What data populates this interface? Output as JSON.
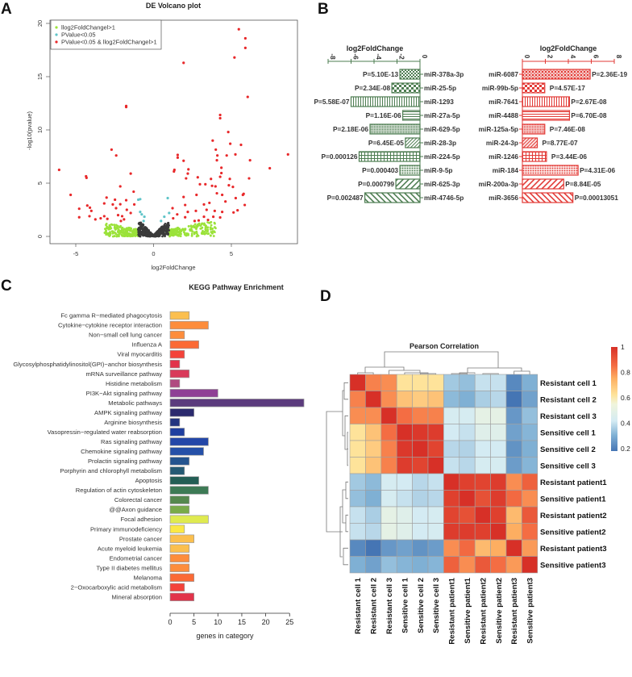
{
  "panels": {
    "a": "A",
    "b": "B",
    "c": "C",
    "d": "D"
  },
  "chart_data": [
    {
      "type": "scatter",
      "title": "DE Volcano plot",
      "xlabel": "log2FoldChange",
      "ylabel": "-log10(pvalue)",
      "xlim": [
        -6.66,
        9.25
      ],
      "ylim": [
        -0.76,
        20.2
      ],
      "xticks": [
        "-5",
        "0",
        "5"
      ],
      "xtick_values": [
        -5,
        0,
        5
      ],
      "yticks": [
        "0",
        "5",
        "10",
        "15",
        "20"
      ],
      "ytick_values": [
        0,
        5,
        10,
        15,
        20
      ],
      "legend_position": "top-left",
      "legend": [
        {
          "label": "llog2FoldChangel>1",
          "color": "#9be23a"
        },
        {
          "label": "PValue<0.05",
          "color": "#5fc4c8"
        },
        {
          "label": "PValue<0.05 & llog2FoldChangel>1",
          "color": "#e8282a"
        }
      ],
      "colors": {
        "fc_only": "#9be23a",
        "p_only": "#5fc4c8",
        "both": "#e8282a",
        "none": "#3a3a3a"
      },
      "background_counts": {
        "fc_only": 420,
        "none": 380
      },
      "p_only_points": [
        [
          -0.98,
          3.45
        ],
        [
          -0.86,
          3.5
        ],
        [
          0.91,
          3.6
        ],
        [
          -0.86,
          2.3
        ],
        [
          -0.76,
          2.07
        ],
        [
          -0.59,
          1.85
        ],
        [
          1.0,
          2.2
        ],
        [
          0.69,
          1.85
        ],
        [
          -0.64,
          1.45
        ],
        [
          0.48,
          1.45
        ]
      ],
      "both_points": [
        [
          5.48,
          19.45
        ],
        [
          5.9,
          18.6
        ],
        [
          5.9,
          17.7
        ],
        [
          5.2,
          16.8
        ],
        [
          1.93,
          16.3
        ],
        [
          6.05,
          13.1
        ],
        [
          -1.76,
          12.25
        ],
        [
          -1.76,
          12.15
        ],
        [
          4.28,
          11.4
        ],
        [
          4.28,
          11.1
        ],
        [
          4.8,
          9.8
        ],
        [
          3.8,
          9
        ],
        [
          4.93,
          8.7
        ],
        [
          5.62,
          8.6
        ],
        [
          -2.7,
          8.15
        ],
        [
          -2.4,
          7.6
        ],
        [
          1.55,
          7.65
        ],
        [
          1.55,
          7.4
        ],
        [
          4,
          8.15
        ],
        [
          4.1,
          7.6
        ],
        [
          4.7,
          7.6
        ],
        [
          5.26,
          7.7
        ],
        [
          8.64,
          7.7
        ],
        [
          6.2,
          7.15
        ],
        [
          4.07,
          7.15
        ],
        [
          1.93,
          7.1
        ],
        [
          -6.07,
          6.25
        ],
        [
          1.34,
          6.25
        ],
        [
          1.31,
          6.1
        ],
        [
          2.24,
          6.3
        ],
        [
          7.47,
          6.4
        ],
        [
          4.36,
          6.45
        ],
        [
          4.36,
          5.95
        ],
        [
          -1.47,
          5.9
        ],
        [
          2.2,
          5.9
        ],
        [
          -4.34,
          5.65
        ],
        [
          -4.31,
          5.5
        ],
        [
          2.09,
          5.45
        ],
        [
          2.84,
          5.55
        ],
        [
          4.28,
          5.6
        ],
        [
          6.14,
          5.45
        ],
        [
          3.69,
          5.4
        ],
        [
          4.9,
          5.4
        ],
        [
          2.98,
          4.9
        ],
        [
          3.33,
          4.9
        ],
        [
          3.76,
          4.75
        ],
        [
          3.98,
          4.7
        ],
        [
          4.84,
          4.8
        ],
        [
          5.1,
          4.65
        ],
        [
          -2.14,
          4.7
        ],
        [
          -1.28,
          4.2
        ],
        [
          -5.33,
          3.9
        ],
        [
          -3.02,
          3.65
        ],
        [
          -2.48,
          3.45
        ],
        [
          -1.76,
          3.4
        ],
        [
          1.93,
          3.7
        ],
        [
          2.76,
          3.9
        ],
        [
          4.07,
          4.05
        ],
        [
          4.41,
          3.9
        ],
        [
          5.28,
          3.6
        ],
        [
          5.79,
          4
        ],
        [
          5.74,
          3.9
        ],
        [
          -3.17,
          3.1
        ],
        [
          -2.62,
          3
        ],
        [
          -2.14,
          3.02
        ],
        [
          -1.24,
          3
        ],
        [
          -4.26,
          2.9
        ],
        [
          2.03,
          2.95
        ],
        [
          3.24,
          3
        ],
        [
          3.59,
          3.15
        ],
        [
          4.62,
          3.28
        ],
        [
          5.86,
          2.95
        ],
        [
          -4.78,
          2.6
        ],
        [
          -4.09,
          2.7
        ],
        [
          -4.0,
          2.4
        ],
        [
          -2.41,
          2.65
        ],
        [
          -1.72,
          2.5
        ],
        [
          1.22,
          2.65
        ],
        [
          2.2,
          2.3
        ],
        [
          2.72,
          2.4
        ],
        [
          3.41,
          2.5
        ],
        [
          3.93,
          2.4
        ],
        [
          4.41,
          2.3
        ],
        [
          5.14,
          2.25
        ],
        [
          5.4,
          2.45
        ],
        [
          -4.78,
          1.8
        ],
        [
          -4.12,
          1.9
        ],
        [
          -3.74,
          1.6
        ],
        [
          -3.17,
          1.9
        ],
        [
          -2.97,
          1.65
        ],
        [
          -2.28,
          2
        ],
        [
          -2.02,
          1.9
        ],
        [
          -1.47,
          2.2
        ],
        [
          1.52,
          2.07
        ],
        [
          2.03,
          1.8
        ],
        [
          3.24,
          1.85
        ],
        [
          3.84,
          1.85
        ],
        [
          4.28,
          1.78
        ],
        [
          1.26,
          1.7
        ],
        [
          2.64,
          1.45
        ],
        [
          -2.1,
          1.45
        ],
        [
          -1.9,
          1.6
        ],
        [
          2.9,
          1.5
        ],
        [
          3.5,
          1.55
        ],
        [
          -3.4,
          1.7
        ]
      ]
    },
    {
      "type": "bar",
      "orientation": "horizontal",
      "title": "log2FoldChange",
      "xlim": [
        -8,
        0
      ],
      "xticks": [
        "-8",
        "-6",
        "-4",
        "-2",
        "0"
      ],
      "xtick_values": [
        -8,
        -6,
        -4,
        -2,
        0
      ],
      "color": "#4e7d52",
      "categories": [
        "miR-378a-3p",
        "miR-25-5p",
        "miR-1293",
        "miR-27a-5p",
        "miR-629-5p",
        "miR-28-3p",
        "miR-224-5p",
        "miR-9-5p",
        "miR-625-3p",
        "miR-4746-5p"
      ],
      "values": [
        -1.75,
        -2.45,
        -6.0,
        -1.5,
        -4.35,
        -1.27,
        -5.3,
        -1.75,
        -2.1,
        -4.8
      ],
      "labels": [
        "P=5.10E-13",
        "P=2.34E-08",
        "P=5.58E-07",
        "P=1.16E-06",
        "P=2.18E-06",
        "P=6.45E-05",
        "P=0.000126",
        "P=0.000403",
        "P=0.000799",
        "P=0.002487"
      ]
    },
    {
      "type": "bar",
      "orientation": "horizontal",
      "title": "log2FoldChange",
      "xlim": [
        0,
        8
      ],
      "xticks": [
        "0",
        "2",
        "4",
        "6",
        "8"
      ],
      "xtick_values": [
        0,
        2,
        4,
        6,
        8
      ],
      "color": "#e23a36",
      "categories": [
        "miR-6087",
        "miR-99b-5p",
        "miR-7641",
        "miR-4488",
        "miR-125a-5p",
        "miR-24-3p",
        "miR-1246",
        "miR-184",
        "miR-200a-3p",
        "miR-3656"
      ],
      "values": [
        5.9,
        1.95,
        4.1,
        4.1,
        1.95,
        1.3,
        2.1,
        4.85,
        3.6,
        4.4
      ],
      "labels": [
        "P=2.36E-19",
        "P=4.57E-17",
        "P=2.67E-08",
        "P=6.70E-08",
        "P=7.46E-08",
        "P=8.77E-07",
        "P=3.44E-06",
        "P=4.31E-06",
        "P=8.84E-05",
        "P=0.00013051"
      ]
    },
    {
      "type": "bar",
      "orientation": "horizontal",
      "title": "KEGG Pathway Enrichment",
      "xlabel": "genes in category",
      "xlim": [
        0,
        28
      ],
      "xticks": [
        "0",
        "5",
        "10",
        "15",
        "20",
        "25"
      ],
      "xtick_values": [
        0,
        5,
        10,
        15,
        20,
        25
      ],
      "categories": [
        "Fc gamma R−mediated phagocytosis",
        "Cytokine−cytokine receptor interaction",
        "Non−small cell lung cancer",
        "Influenza A",
        "Viral myocarditis",
        "Glycosylphosphatidylinositol(GPI)−anchor biosynthesis",
        "mRNA surveillance pathway",
        "Histidine metabolism",
        "PI3K−Akt signaling pathway",
        "Metabolic pathways",
        "AMPK signaling pathway",
        "Arginine biosynthesis",
        "Vasopressin−regulated water reabsorption",
        "Ras signaling pathway",
        "Chemokine signaling pathway",
        "Prolactin signaling pathway",
        "Porphyrin and chlorophyll metabolism",
        "Apoptosis",
        "Regulation of actin cytoskeleton",
        "Colorectal cancer",
        "@@Axon guidance",
        "Focal adhesion",
        "Primary immunodeficiency",
        "Prostate cancer",
        "Acute myeloid leukemia",
        "Endometrial cancer",
        "Type II diabetes mellitus",
        "Melanoma",
        "2−Oxocarboxylic acid metabolism",
        "Mineral absorption"
      ],
      "values": [
        4,
        8,
        3,
        6,
        3,
        2,
        4,
        2,
        10,
        28,
        5,
        2,
        3,
        8,
        7,
        4,
        3,
        6,
        8,
        4,
        4,
        8,
        3,
        5,
        4,
        4,
        4,
        5,
        3,
        5
      ],
      "colors": [
        "#fbbf4e",
        "#fd8d3c",
        "#fd8d3c",
        "#fb6a35",
        "#f4433a",
        "#e2334a",
        "#d93a5a",
        "#b04a80",
        "#8f3f95",
        "#5b3b7d",
        "#2b2a6e",
        "#223480",
        "#1f3fa0",
        "#2447a8",
        "#2550a8",
        "#24548f",
        "#255a74",
        "#235e55",
        "#3d7a55",
        "#55884e",
        "#79aa4a",
        "#dfea50",
        "#fbe845",
        "#fbbf4e",
        "#fbbf4e",
        "#fd8d3c",
        "#fd8d3c",
        "#fb6a35",
        "#f4433a",
        "#e2334a"
      ]
    },
    {
      "type": "heatmap",
      "title": "Pearson Correlation",
      "labels": [
        "Resistant cell 1",
        "Resistant cell 2",
        "Resistant cell 3",
        "Sensitive cell 1",
        "Sensitive cell 2",
        "Sensitive cell 3",
        "Resistant patient1",
        "Sensitive patient1",
        "Resistant patient2",
        "Sensitive patient2",
        "Resistant patient3",
        "Sensitive patient3"
      ],
      "colorbar_ticks": [
        "1",
        "0.8",
        "0.6",
        "0.4",
        "0.2"
      ],
      "colorbar_tick_values": [
        1,
        0.8,
        0.6,
        0.4,
        0.2
      ],
      "range": [
        0.18,
        1
      ],
      "matrix": [
        [
          1,
          0.82,
          0.8,
          0.62,
          0.62,
          0.62,
          0.35,
          0.33,
          0.4,
          0.4,
          0.22,
          0.3
        ],
        [
          0.82,
          1,
          0.8,
          0.7,
          0.68,
          0.7,
          0.32,
          0.3,
          0.36,
          0.38,
          0.18,
          0.27
        ],
        [
          0.8,
          0.8,
          1,
          0.85,
          0.82,
          0.82,
          0.43,
          0.43,
          0.5,
          0.5,
          0.25,
          0.33
        ],
        [
          0.62,
          0.7,
          0.85,
          1,
          0.98,
          0.97,
          0.42,
          0.4,
          0.47,
          0.47,
          0.27,
          0.31
        ],
        [
          0.62,
          0.68,
          0.82,
          0.98,
          1,
          0.95,
          0.38,
          0.37,
          0.42,
          0.42,
          0.24,
          0.3
        ],
        [
          0.62,
          0.7,
          0.82,
          0.97,
          0.95,
          1,
          0.4,
          0.38,
          0.43,
          0.43,
          0.26,
          0.31
        ],
        [
          0.35,
          0.32,
          0.43,
          0.42,
          0.38,
          0.4,
          1,
          0.96,
          0.95,
          0.97,
          0.8,
          0.88
        ],
        [
          0.33,
          0.3,
          0.43,
          0.4,
          0.37,
          0.38,
          0.96,
          1,
          0.92,
          0.97,
          0.86,
          0.8
        ],
        [
          0.4,
          0.36,
          0.5,
          0.47,
          0.42,
          0.43,
          0.95,
          0.92,
          1,
          0.96,
          0.72,
          0.9
        ],
        [
          0.4,
          0.38,
          0.5,
          0.47,
          0.42,
          0.43,
          0.97,
          0.97,
          0.96,
          1,
          0.75,
          0.85
        ],
        [
          0.22,
          0.18,
          0.25,
          0.27,
          0.24,
          0.26,
          0.8,
          0.86,
          0.72,
          0.75,
          1,
          0.78
        ],
        [
          0.3,
          0.27,
          0.33,
          0.31,
          0.3,
          0.31,
          0.88,
          0.8,
          0.9,
          0.85,
          0.78,
          1
        ]
      ]
    }
  ]
}
